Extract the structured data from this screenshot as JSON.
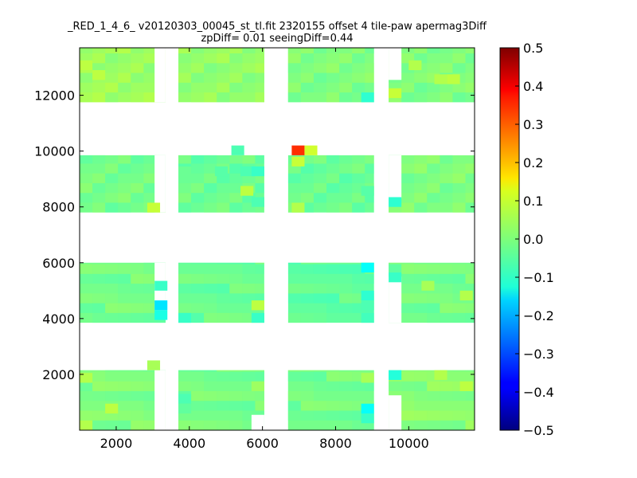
{
  "chart_data": {
    "type": "heatmap",
    "title": "_RED_1_4_6_ v20120303_00045_st_tl.fit 2320155 offset 4 tile-paw apermag3Diff",
    "subtitle": "zpDiff= 0.01 seeingDiff=0.44",
    "xlabel": "",
    "ylabel": "",
    "xlim": [
      1000,
      11800
    ],
    "ylim": [
      0,
      13700
    ],
    "x_ticks": [
      2000,
      4000,
      6000,
      8000,
      10000
    ],
    "x_tick_labels": [
      "2000",
      "4000",
      "6000",
      "8000",
      "10000"
    ],
    "y_ticks": [
      2000,
      4000,
      6000,
      8000,
      10000,
      12000
    ],
    "y_tick_labels": [
      "2000",
      "4000",
      "6000",
      "8000",
      "10000",
      "12000"
    ],
    "colorbar": {
      "colormap": "jet",
      "range": [
        -0.5,
        0.5
      ],
      "ticks": [
        0.5,
        0.4,
        0.3,
        0.2,
        0.1,
        0.0,
        -0.1,
        -0.2,
        -0.3,
        -0.4,
        -0.5
      ],
      "tick_labels": [
        "0.5",
        "0.4",
        "0.3",
        "0.2",
        "0.1",
        "0.0",
        "−0.1",
        "−0.2",
        "−0.3",
        "−0.4",
        "−0.5"
      ]
    },
    "grid": false,
    "cell_size": [
      350,
      350
    ],
    "detectors": [
      {
        "x": [
          1000,
          3350
        ],
        "y": [
          11750,
          13750
        ],
        "value": 0.03
      },
      {
        "x": [
          3700,
          6050
        ],
        "y": [
          11750,
          13750
        ],
        "value": 0.02
      },
      {
        "x": [
          6700,
          9050
        ],
        "y": [
          11750,
          13750
        ],
        "value": 0.0
      },
      {
        "x": [
          9450,
          11800
        ],
        "y": [
          11750,
          13750
        ],
        "value": 0.0
      },
      {
        "x": [
          1000,
          3350
        ],
        "y": [
          7800,
          9850
        ],
        "value": -0.01
      },
      {
        "x": [
          3700,
          6050
        ],
        "y": [
          7800,
          9850
        ],
        "value": -0.02
      },
      {
        "x": [
          6700,
          9050
        ],
        "y": [
          7800,
          9850
        ],
        "value": -0.02
      },
      {
        "x": [
          9450,
          11800
        ],
        "y": [
          7800,
          9850
        ],
        "value": 0.0
      },
      {
        "x": [
          1000,
          3350
        ],
        "y": [
          3850,
          6000
        ],
        "value": -0.01
      },
      {
        "x": [
          3700,
          6050
        ],
        "y": [
          3850,
          6000
        ],
        "value": -0.02
      },
      {
        "x": [
          6700,
          9050
        ],
        "y": [
          3850,
          6000
        ],
        "value": -0.03
      },
      {
        "x": [
          9450,
          11800
        ],
        "y": [
          3850,
          6000
        ],
        "value": -0.01
      },
      {
        "x": [
          1000,
          3350
        ],
        "y": [
          0,
          2150
        ],
        "value": 0.0
      },
      {
        "x": [
          3700,
          6050
        ],
        "y": [
          0,
          2150
        ],
        "value": -0.01
      },
      {
        "x": [
          6700,
          9050
        ],
        "y": [
          0,
          2150
        ],
        "value": -0.01
      },
      {
        "x": [
          9450,
          11800
        ],
        "y": [
          0,
          2150
        ],
        "value": 0.01
      }
    ],
    "blank_regions": [
      {
        "x": [
          3050,
          3350
        ],
        "y": [
          11750,
          13750
        ]
      },
      {
        "x": [
          9450,
          9800
        ],
        "y": [
          12550,
          13750
        ]
      },
      {
        "x": [
          3050,
          3350
        ],
        "y": [
          7800,
          9850
        ]
      },
      {
        "x": [
          6050,
          6700
        ],
        "y": [
          7800,
          9850
        ]
      },
      {
        "x": [
          9450,
          9800
        ],
        "y": [
          8300,
          9850
        ]
      },
      {
        "x": [
          3050,
          3350
        ],
        "y": [
          4300,
          6000
        ]
      },
      {
        "x": [
          6050,
          6700
        ],
        "y": [
          3850,
          6000
        ]
      },
      {
        "x": [
          9450,
          9800
        ],
        "y": [
          3850,
          5500
        ]
      },
      {
        "x": [
          3050,
          3350
        ],
        "y": [
          0,
          2150
        ]
      },
      {
        "x": [
          5700,
          6050
        ],
        "y": [
          0,
          550
        ]
      },
      {
        "x": [
          9450,
          9800
        ],
        "y": [
          0,
          1250
        ]
      }
    ],
    "cells": [
      {
        "x": 9450,
        "y": 11900,
        "value": 0.07
      },
      {
        "x": 8700,
        "y": 11750,
        "value": -0.08
      },
      {
        "x": 5150,
        "y": 9850,
        "value": -0.05
      },
      {
        "x": 6800,
        "y": 9850,
        "value": 0.33
      },
      {
        "x": 7150,
        "y": 9850,
        "value": 0.08
      },
      {
        "x": 6800,
        "y": 9450,
        "value": 0.07
      },
      {
        "x": 3700,
        "y": 9100,
        "value": -0.02
      },
      {
        "x": 4700,
        "y": 9100,
        "value": -0.04
      },
      {
        "x": 5400,
        "y": 9100,
        "value": -0.05
      },
      {
        "x": 5700,
        "y": 9100,
        "value": -0.07
      },
      {
        "x": 5400,
        "y": 8400,
        "value": 0.06
      },
      {
        "x": 5700,
        "y": 8000,
        "value": -0.05
      },
      {
        "x": 2850,
        "y": 7800,
        "value": 0.07
      },
      {
        "x": 6800,
        "y": 7800,
        "value": 0.05
      },
      {
        "x": 9450,
        "y": 8000,
        "value": -0.08
      },
      {
        "x": 8700,
        "y": 8400,
        "value": -0.04
      },
      {
        "x": 8700,
        "y": 5650,
        "value": -0.12
      },
      {
        "x": 3050,
        "y": 5000,
        "value": -0.07
      },
      {
        "x": 3050,
        "y": 4300,
        "value": -0.15
      },
      {
        "x": 3050,
        "y": 3950,
        "value": -0.1
      },
      {
        "x": 8700,
        "y": 4650,
        "value": -0.08
      },
      {
        "x": 8700,
        "y": 4300,
        "value": -0.05
      },
      {
        "x": 8700,
        "y": 3850,
        "value": -0.06
      },
      {
        "x": 3700,
        "y": 3850,
        "value": -0.07
      },
      {
        "x": 5700,
        "y": 3850,
        "value": -0.07
      },
      {
        "x": 5700,
        "y": 4300,
        "value": 0.06
      },
      {
        "x": 10350,
        "y": 5000,
        "value": 0.04
      },
      {
        "x": 11400,
        "y": 4650,
        "value": 0.05
      },
      {
        "x": 9450,
        "y": 5300,
        "value": -0.07
      },
      {
        "x": 9450,
        "y": 1800,
        "value": -0.09
      },
      {
        "x": 8700,
        "y": 1700,
        "value": 0.04
      },
      {
        "x": 8700,
        "y": 600,
        "value": -0.12
      },
      {
        "x": 8700,
        "y": 250,
        "value": -0.07
      },
      {
        "x": 3700,
        "y": 950,
        "value": -0.05
      },
      {
        "x": 3700,
        "y": 600,
        "value": -0.03
      },
      {
        "x": 5700,
        "y": 1400,
        "value": 0.03
      },
      {
        "x": 1000,
        "y": 1700,
        "value": 0.05
      },
      {
        "x": 1000,
        "y": 0,
        "value": 0.05
      },
      {
        "x": 1700,
        "y": 600,
        "value": 0.06
      },
      {
        "x": 10700,
        "y": 1800,
        "value": 0.05
      },
      {
        "x": 11400,
        "y": 1400,
        "value": 0.06
      },
      {
        "x": 2850,
        "y": 2150,
        "value": 0.04
      },
      {
        "x": 1000,
        "y": 12900,
        "value": 0.06
      },
      {
        "x": 1350,
        "y": 12550,
        "value": 0.06
      },
      {
        "x": 10000,
        "y": 12900,
        "value": 0.05
      },
      {
        "x": 10700,
        "y": 12400,
        "value": 0.05
      },
      {
        "x": 11050,
        "y": 12400,
        "value": 0.06
      }
    ]
  }
}
